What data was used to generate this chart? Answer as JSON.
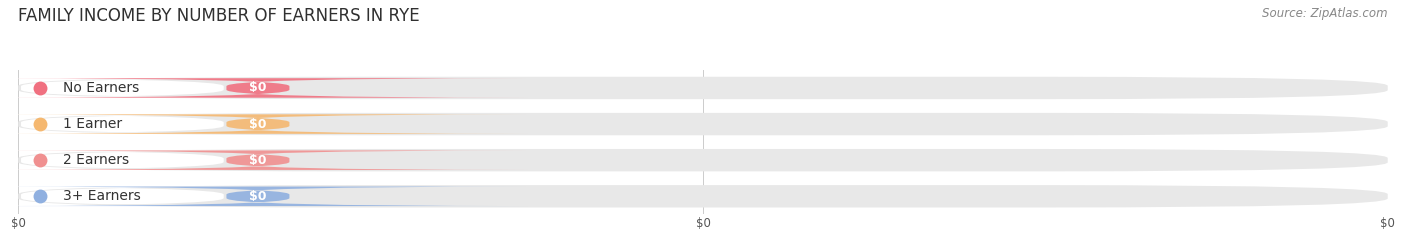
{
  "title": "FAMILY INCOME BY NUMBER OF EARNERS IN RYE",
  "source": "Source: ZipAtlas.com",
  "categories": [
    "No Earners",
    "1 Earner",
    "2 Earners",
    "3+ Earners"
  ],
  "values": [
    0,
    0,
    0,
    0
  ],
  "bar_colors": [
    "#f07080",
    "#f5b870",
    "#f09090",
    "#90b0e0"
  ],
  "bar_bg_color": "#e8e8e8",
  "background_color": "#ffffff",
  "title_fontsize": 12,
  "source_fontsize": 8.5,
  "category_fontsize": 10,
  "tick_fontsize": 8.5,
  "figsize": [
    14.06,
    2.33
  ],
  "dpi": 100
}
